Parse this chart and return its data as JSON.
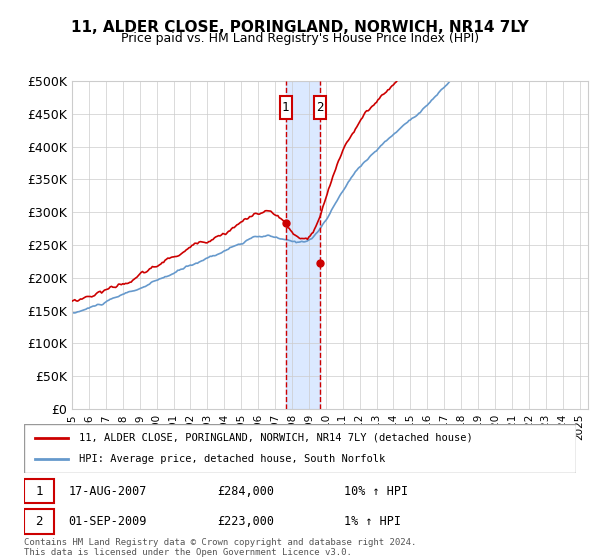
{
  "title": "11, ALDER CLOSE, PORINGLAND, NORWICH, NR14 7LY",
  "subtitle": "Price paid vs. HM Land Registry's House Price Index (HPI)",
  "ylim": [
    0,
    500000
  ],
  "yticks": [
    0,
    50000,
    100000,
    150000,
    200000,
    250000,
    300000,
    350000,
    400000,
    450000,
    500000
  ],
  "ytick_labels": [
    "£0",
    "£50K",
    "£100K",
    "£150K",
    "£200K",
    "£250K",
    "£300K",
    "£350K",
    "£400K",
    "£450K",
    "£500K"
  ],
  "x_start_year": 1995,
  "x_end_year": 2025,
  "transaction1_year": 2007.625,
  "transaction1_price": 284000,
  "transaction1_label": "1",
  "transaction1_date": "17-AUG-2007",
  "transaction1_hpi": "10% ↑ HPI",
  "transaction2_year": 2009.667,
  "transaction2_price": 223000,
  "transaction2_label": "2",
  "transaction2_date": "01-SEP-2009",
  "transaction2_hpi": "1% ↑ HPI",
  "transaction1_price_str": "£284,000",
  "transaction2_price_str": "£223,000",
  "red_line_color": "#cc0000",
  "blue_line_color": "#6699cc",
  "shade_color": "#cce0ff",
  "background_color": "#ffffff",
  "grid_color": "#cccccc",
  "legend_line1": "11, ALDER CLOSE, PORINGLAND, NORWICH, NR14 7LY (detached house)",
  "legend_line2": "HPI: Average price, detached house, South Norfolk",
  "footnote": "Contains HM Land Registry data © Crown copyright and database right 2024.\nThis data is licensed under the Open Government Licence v3.0."
}
